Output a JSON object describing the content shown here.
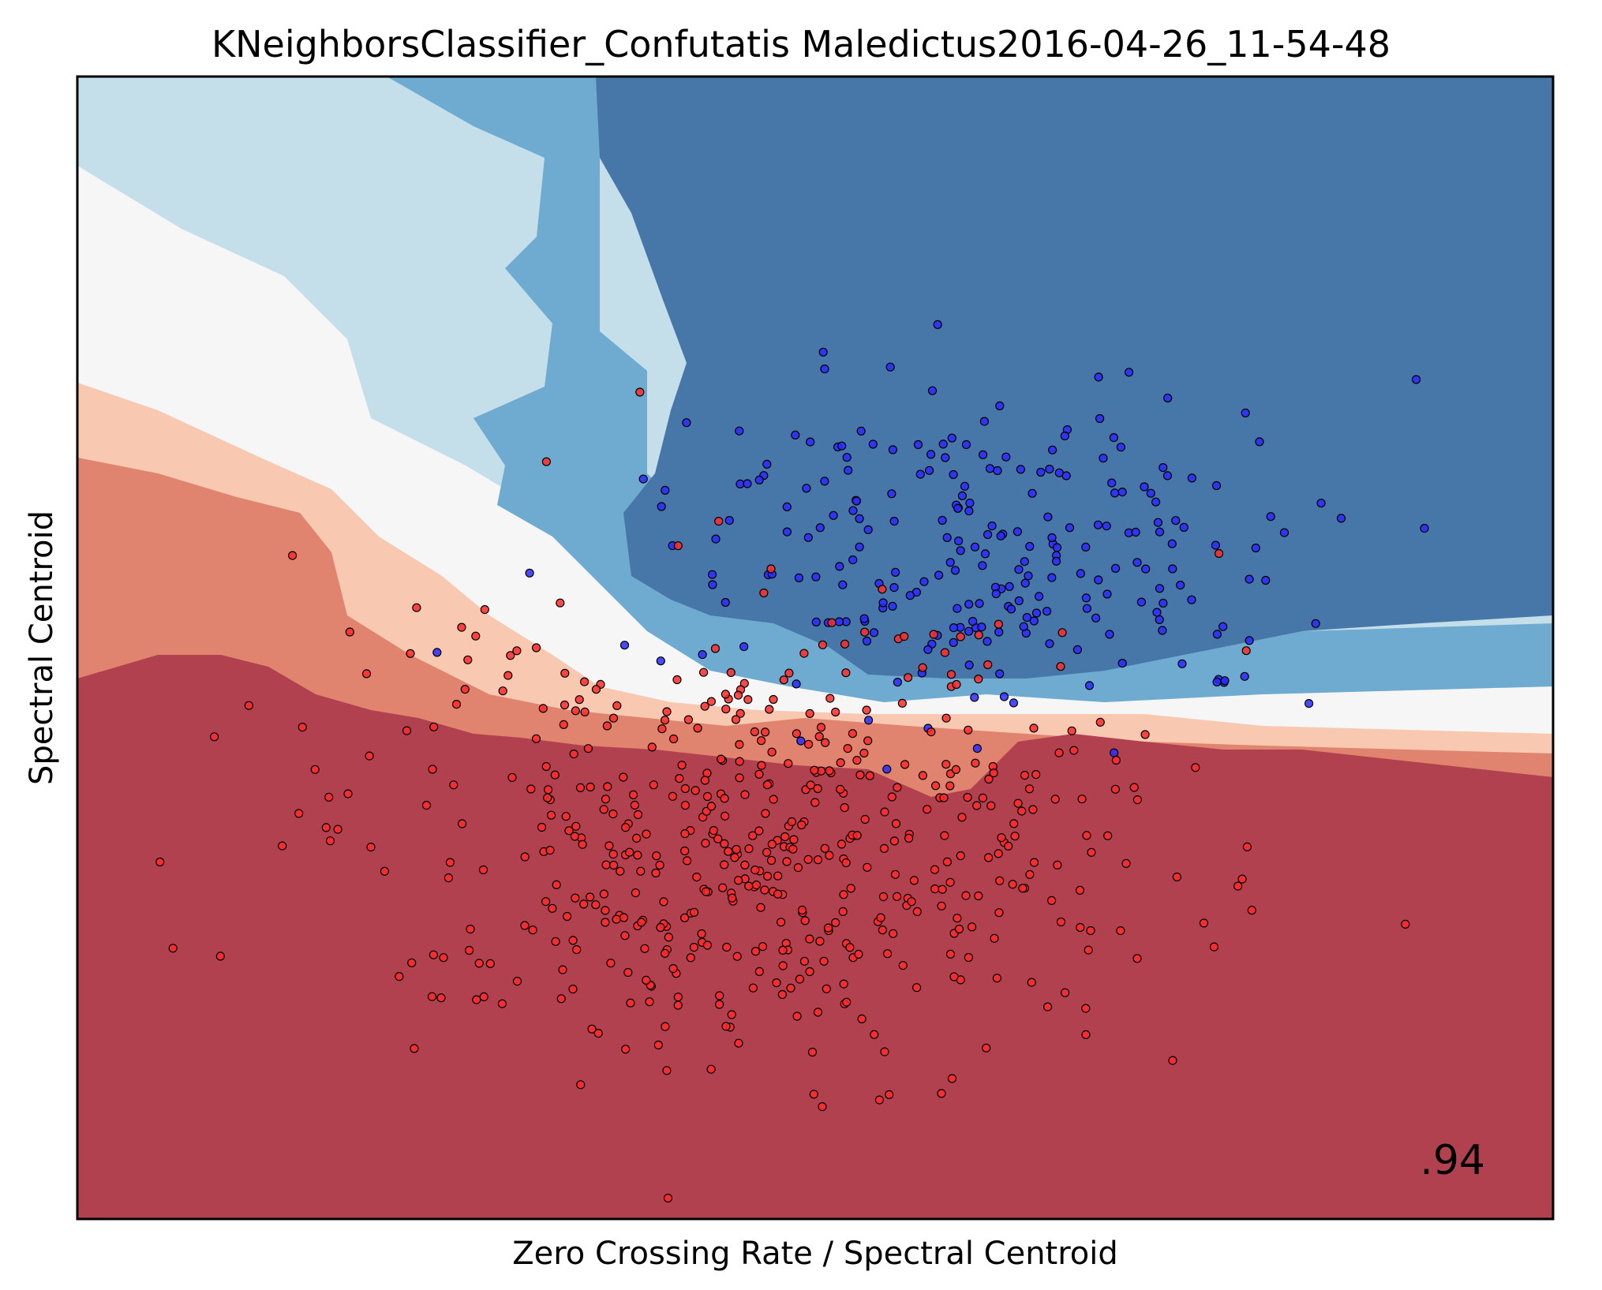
{
  "chart_data": {
    "type": "scatter",
    "title": "KNeighborsClassifier_Confutatis Maledictus2016-04-26_11-54-48",
    "xlabel": "Zero Crossing Rate / Spectral Centroid",
    "ylabel": "Spectral Centroid",
    "annotation": ".94",
    "xticks": "none",
    "yticks": "none",
    "grid": false,
    "colors": {
      "background_regions": [
        "#b2414f",
        "#e0836f",
        "#f8c8b0",
        "#f6f6f6",
        "#c4dfea",
        "#6fabd0",
        "#4677a8"
      ],
      "class_0_points": "#ff2a2a",
      "class_1_points": "#2a2aff",
      "point_edge": "#000000"
    },
    "series": [
      {
        "class": "blue",
        "count": 250
      },
      {
        "class": "red",
        "count": 550
      }
    ]
  }
}
